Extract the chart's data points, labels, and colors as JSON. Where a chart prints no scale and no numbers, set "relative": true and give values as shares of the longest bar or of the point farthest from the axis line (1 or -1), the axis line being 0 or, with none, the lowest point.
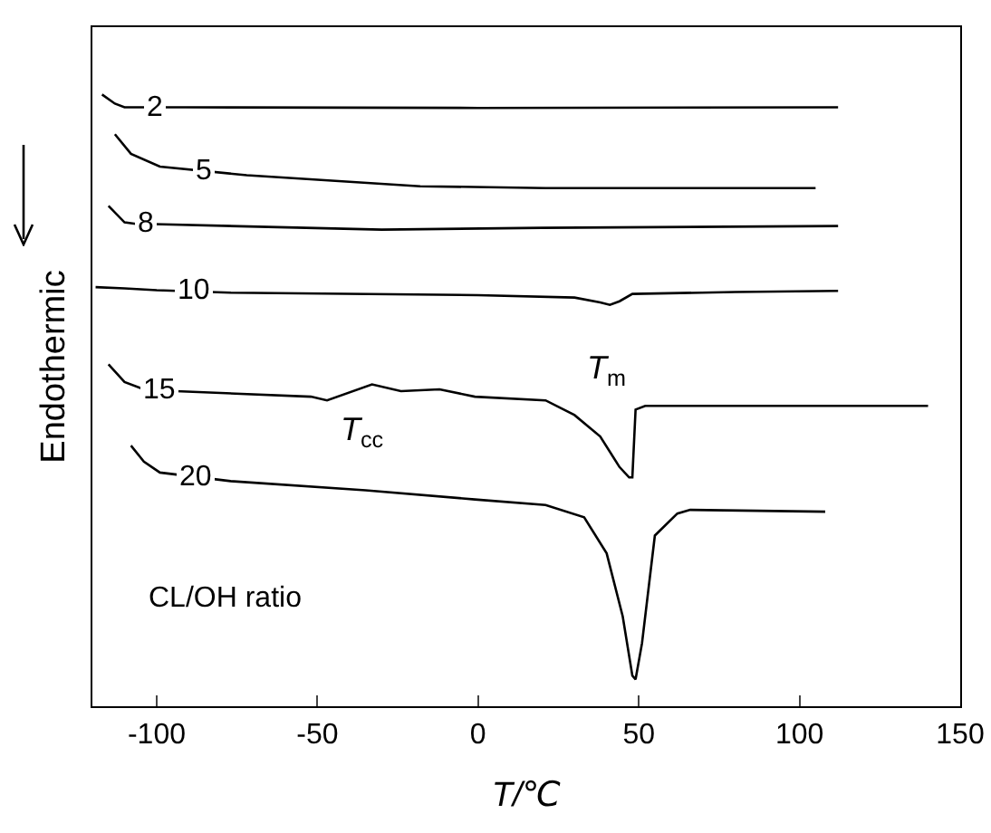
{
  "chart_data": {
    "type": "line",
    "relative": true,
    "xlabel": "T/℃",
    "ylabel": "Endothermic",
    "xlim": [
      -120,
      150
    ],
    "xticks": [
      -100,
      -50,
      0,
      50,
      100,
      150
    ],
    "grid": false,
    "legend": false,
    "series": [
      {
        "name": "2",
        "color": "#000000",
        "x": [
          -117,
          -113,
          -110,
          -91,
          0,
          112
        ],
        "values": [
          1.0,
          0.985,
          0.979,
          0.979,
          0.978,
          0.979
        ]
      },
      {
        "name": "5",
        "color": "#000000",
        "x": [
          -113,
          -108,
          -99,
          -72,
          -18,
          21,
          105
        ],
        "values": [
          0.935,
          0.903,
          0.882,
          0.868,
          0.85,
          0.847,
          0.847
        ]
      },
      {
        "name": "8",
        "color": "#000000",
        "x": [
          -115,
          -110,
          -106,
          -101,
          -30,
          20,
          112
        ],
        "values": [
          0.818,
          0.791,
          0.788,
          0.788,
          0.779,
          0.782,
          0.785
        ]
      },
      {
        "name": "10",
        "color": "#000000",
        "x": [
          -119,
          -110,
          -100,
          -77,
          0,
          30,
          38,
          41,
          44,
          48,
          80,
          112
        ],
        "values": [
          0.685,
          0.683,
          0.68,
          0.676,
          0.672,
          0.668,
          0.66,
          0.656,
          0.662,
          0.674,
          0.677,
          0.679
        ]
      },
      {
        "name": "15",
        "color": "#000000",
        "x": [
          -115,
          -110,
          -104,
          -94,
          -52,
          -47,
          -33,
          -24,
          -12,
          -1,
          21,
          30,
          38,
          44,
          47,
          48,
          49,
          52,
          140
        ],
        "values": [
          0.559,
          0.53,
          0.518,
          0.515,
          0.506,
          0.5,
          0.526,
          0.515,
          0.518,
          0.506,
          0.5,
          0.476,
          0.441,
          0.391,
          0.374,
          0.374,
          0.485,
          0.491,
          0.491
        ]
      },
      {
        "name": "20",
        "color": "#000000",
        "x": [
          -108,
          -104,
          -99,
          -77,
          -35,
          -1,
          21,
          33,
          40,
          45,
          48,
          49,
          51,
          55,
          62,
          66,
          108
        ],
        "values": [
          0.426,
          0.4,
          0.382,
          0.368,
          0.353,
          0.338,
          0.329,
          0.309,
          0.25,
          0.147,
          0.05,
          0.044,
          0.103,
          0.279,
          0.315,
          0.321,
          0.318
        ]
      }
    ],
    "annotations": [
      "T$_{cc}$",
      "T$_{m}$",
      "CL/OH ratio"
    ]
  }
}
